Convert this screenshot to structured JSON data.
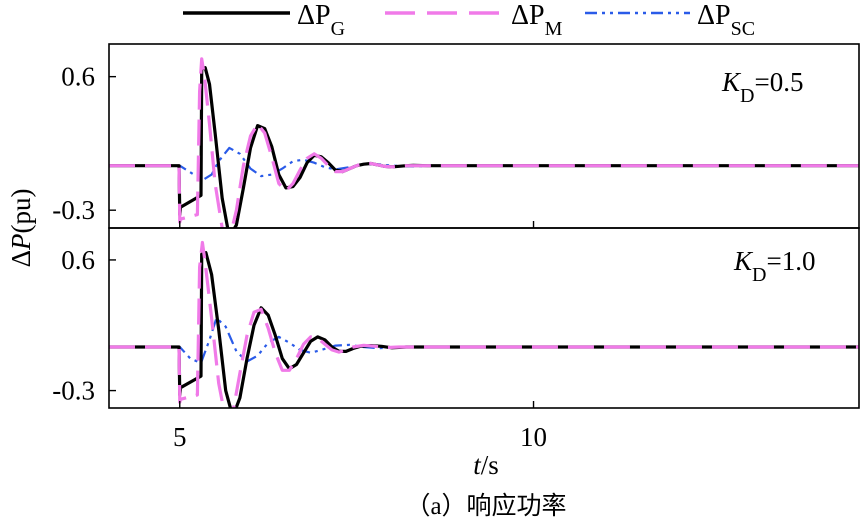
{
  "chart_data": {
    "type": "line",
    "legend": {
      "placement": "top",
      "entries": [
        {
          "key": "pg",
          "base": "ΔP",
          "sub": "G",
          "color": "#000000",
          "dash": "solid"
        },
        {
          "key": "pm",
          "base": "ΔP",
          "sub": "M",
          "color": "#f07ae8",
          "dash": "long-dash"
        },
        {
          "key": "psc",
          "base": "ΔP",
          "sub": "SC",
          "color": "#2a5be8",
          "dash": "dash-dot-dot"
        }
      ]
    },
    "ylabel": {
      "prefix": "Δ",
      "italic": "P",
      "suffix": "(pu)"
    },
    "xlabel": {
      "italic": "t",
      "suffix": "/s"
    },
    "caption": "（a）响应功率",
    "xlim": [
      4,
      14.6
    ],
    "xticks": [
      {
        "value": 5,
        "label": "5"
      },
      {
        "value": 10,
        "label": "10"
      }
    ],
    "panels": [
      {
        "annotation": {
          "italic": "K",
          "sub": "D",
          "value": "=0.5"
        },
        "ylim": [
          -0.42,
          0.82
        ],
        "yticks": [
          {
            "value": 0.6,
            "label": "0.6"
          },
          {
            "value": -0.3,
            "label": "-0.3"
          }
        ],
        "series": {
          "pg": {
            "x": [
              4,
              4.99,
              5.0,
              5.01,
              5.3,
              5.31,
              5.36,
              5.42,
              5.5,
              5.6,
              5.7,
              5.8,
              5.9,
              6.0,
              6.1,
              6.2,
              6.3,
              6.4,
              6.5,
              6.6,
              6.7,
              6.8,
              6.9,
              7.0,
              7.1,
              7.2,
              7.3,
              7.4,
              7.5,
              7.6,
              7.7,
              7.8,
              7.9,
              8.0,
              8.1,
              8.2,
              8.3,
              8.5,
              9,
              14.6
            ],
            "y": [
              0,
              0,
              -0.33,
              -0.28,
              -0.2,
              0.65,
              0.66,
              0.55,
              0.22,
              -0.22,
              -0.48,
              -0.4,
              -0.15,
              0.12,
              0.27,
              0.25,
              0.13,
              -0.06,
              -0.15,
              -0.14,
              -0.08,
              0.02,
              0.07,
              0.06,
              0.02,
              -0.03,
              -0.04,
              -0.02,
              0.0,
              0.01,
              0.015,
              0.005,
              -0.005,
              -0.008,
              -0.004,
              0.0,
              0.002,
              0.0,
              0,
              0
            ]
          },
          "pm": {
            "x": [
              4,
              4.99,
              5.0,
              5.01,
              5.25,
              5.28,
              5.31,
              5.35,
              5.42,
              5.5,
              5.6,
              5.7,
              5.8,
              5.9,
              6.0,
              6.1,
              6.2,
              6.3,
              6.4,
              6.5,
              6.6,
              6.7,
              6.8,
              6.9,
              7.0,
              7.1,
              7.2,
              7.3,
              7.4,
              7.5,
              7.6,
              7.7,
              7.8,
              7.9,
              8.0,
              8.2,
              8.5,
              9,
              14.6
            ],
            "y": [
              0,
              0,
              -0.38,
              -0.36,
              -0.33,
              0.5,
              0.72,
              0.6,
              0.28,
              -0.12,
              -0.42,
              -0.5,
              -0.3,
              0.0,
              0.2,
              0.28,
              0.22,
              0.06,
              -0.12,
              -0.17,
              -0.12,
              -0.03,
              0.05,
              0.08,
              0.05,
              0.0,
              -0.04,
              -0.04,
              -0.02,
              0.0,
              0.015,
              0.015,
              0.005,
              -0.005,
              -0.008,
              0.0,
              0.0,
              0,
              0
            ]
          },
          "psc": {
            "x": [
              4,
              4.99,
              5.0,
              5.2,
              5.35,
              5.45,
              5.55,
              5.7,
              5.85,
              6.0,
              6.15,
              6.3,
              6.45,
              6.6,
              6.75,
              6.9,
              7.05,
              7.2,
              7.4,
              7.6,
              7.8,
              8.0,
              8.3,
              8.6,
              9,
              14.6
            ],
            "y": [
              0,
              0,
              0.0,
              -0.06,
              -0.09,
              -0.06,
              0.03,
              0.12,
              0.08,
              -0.02,
              -0.07,
              -0.06,
              -0.02,
              0.03,
              0.04,
              0.02,
              -0.01,
              -0.025,
              -0.01,
              0.01,
              0.01,
              0.0,
              -0.005,
              0.0,
              0,
              0
            ]
          }
        }
      },
      {
        "annotation": {
          "italic": "K",
          "sub": "D",
          "value": "=1.0"
        },
        "ylim": [
          -0.42,
          0.82
        ],
        "yticks": [
          {
            "value": 0.6,
            "label": "0.6"
          },
          {
            "value": -0.3,
            "label": "-0.3"
          }
        ],
        "series": {
          "pg": {
            "x": [
              4,
              4.99,
              5.0,
              5.01,
              5.3,
              5.31,
              5.37,
              5.45,
              5.55,
              5.65,
              5.75,
              5.85,
              5.95,
              6.05,
              6.15,
              6.25,
              6.35,
              6.45,
              6.55,
              6.65,
              6.75,
              6.85,
              6.95,
              7.05,
              7.15,
              7.25,
              7.35,
              7.45,
              7.55,
              7.7,
              7.85,
              8.0,
              8.2,
              8.5,
              9,
              14.6
            ],
            "y": [
              0,
              0,
              -0.33,
              -0.28,
              -0.2,
              0.64,
              0.65,
              0.5,
              0.12,
              -0.3,
              -0.48,
              -0.35,
              -0.08,
              0.15,
              0.27,
              0.22,
              0.08,
              -0.08,
              -0.15,
              -0.12,
              -0.04,
              0.04,
              0.07,
              0.05,
              0.0,
              -0.03,
              -0.03,
              -0.01,
              0.005,
              0.01,
              0.005,
              -0.005,
              0.0,
              0.0,
              0,
              0
            ]
          },
          "pm": {
            "x": [
              4,
              4.99,
              5.0,
              5.01,
              5.25,
              5.28,
              5.32,
              5.36,
              5.45,
              5.55,
              5.65,
              5.75,
              5.85,
              5.95,
              6.05,
              6.15,
              6.25,
              6.35,
              6.45,
              6.55,
              6.65,
              6.75,
              6.85,
              6.95,
              7.05,
              7.15,
              7.25,
              7.35,
              7.45,
              7.6,
              7.75,
              7.9,
              8.1,
              8.4,
              9,
              14.6
            ],
            "y": [
              0,
              0,
              -0.38,
              -0.36,
              -0.33,
              0.55,
              0.72,
              0.58,
              0.2,
              -0.25,
              -0.5,
              -0.45,
              -0.18,
              0.08,
              0.24,
              0.26,
              0.13,
              -0.04,
              -0.16,
              -0.16,
              -0.08,
              0.02,
              0.07,
              0.06,
              0.02,
              -0.02,
              -0.035,
              -0.02,
              0.0,
              0.012,
              0.006,
              -0.004,
              0.0,
              0.0,
              0,
              0
            ]
          },
          "psc": {
            "x": [
              4,
              4.99,
              5.0,
              5.15,
              5.3,
              5.42,
              5.52,
              5.65,
              5.8,
              5.95,
              6.1,
              6.25,
              6.4,
              6.55,
              6.7,
              6.85,
              7.0,
              7.2,
              7.4,
              7.6,
              7.8,
              8.0,
              8.3,
              8.6,
              9,
              14.6
            ],
            "y": [
              0,
              0,
              0.0,
              -0.08,
              -0.11,
              0.05,
              0.2,
              0.14,
              -0.03,
              -0.1,
              -0.06,
              0.03,
              0.07,
              0.03,
              -0.02,
              -0.04,
              -0.02,
              0.01,
              0.015,
              0.0,
              -0.008,
              -0.004,
              0.0,
              0.0,
              0,
              0
            ]
          }
        }
      }
    ]
  }
}
